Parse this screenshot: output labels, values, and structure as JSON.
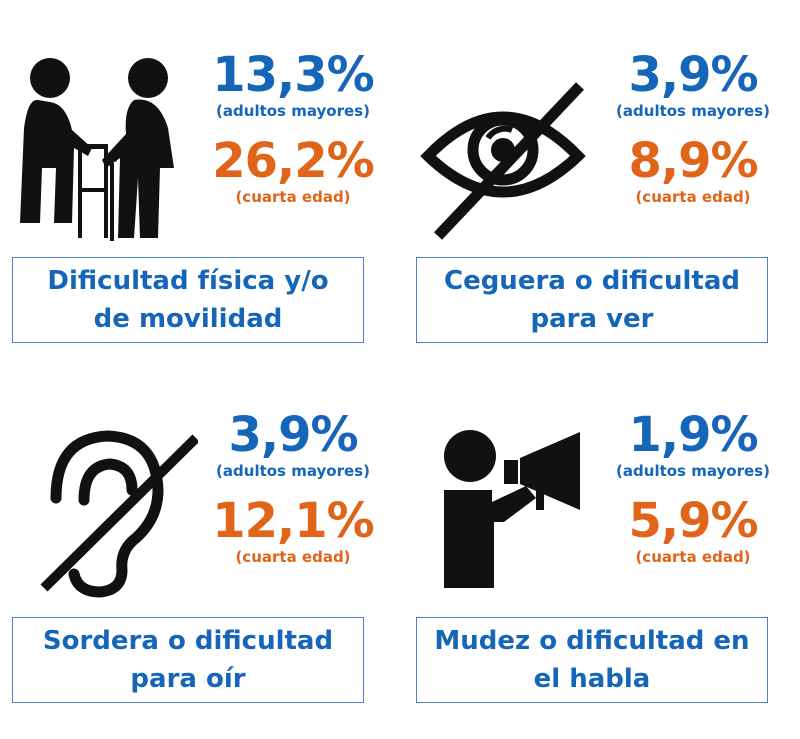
{
  "colors": {
    "blue": "#1565b8",
    "orange": "#e0641a",
    "border": "#4a7fd1",
    "icon": "#111111"
  },
  "panels": [
    {
      "icon": "elderly-couple-walker-cane-icon",
      "adult_pct": "13,3%",
      "adult_label": "(adultos mayores)",
      "fourth_pct": "26,2%",
      "fourth_label": "(cuarta edad)",
      "caption": "Dificultad física y/o de movilidad"
    },
    {
      "icon": "eye-crossed-out-icon",
      "adult_pct": "3,9%",
      "adult_label": "(adultos mayores)",
      "fourth_pct": "8,9%",
      "fourth_label": "(cuarta edad)",
      "caption": "Ceguera o dificultad para ver"
    },
    {
      "icon": "ear-crossed-out-icon",
      "adult_pct": "3,9%",
      "adult_label": "(adultos mayores)",
      "fourth_pct": "12,1%",
      "fourth_label": "(cuarta edad)",
      "caption": "Sordera o dificultad para oír"
    },
    {
      "icon": "person-megaphone-icon",
      "adult_pct": "1,9%",
      "adult_label": "(adultos mayores)",
      "fourth_pct": "5,9%",
      "fourth_label": "(cuarta edad)",
      "caption": "Mudez o dificultad en el habla"
    }
  ]
}
